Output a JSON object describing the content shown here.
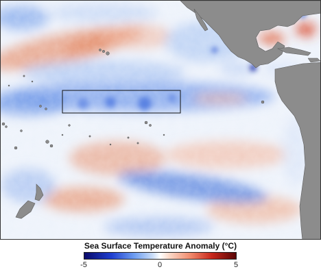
{
  "legend": {
    "title": "Sea Surface Temperature Anomaly",
    "unit": "(°C)",
    "ticks": [
      "-5",
      "0",
      "5"
    ],
    "min": -5,
    "max": 5,
    "colors": [
      "#0a0a6a",
      "#1f3fd0",
      "#6f9ef0",
      "#c9ddf8",
      "#ffffff",
      "#fbd9c8",
      "#f08a6c",
      "#c8281c",
      "#5a0606"
    ]
  },
  "map": {
    "land_color": "#8c8c8c",
    "ocean_neutral": "#eef3fb",
    "anomaly_cool_color": "#5b86e0",
    "anomaly_warm_color": "#e8835f",
    "highlight_box": "equatorial region marked with rectangle"
  }
}
